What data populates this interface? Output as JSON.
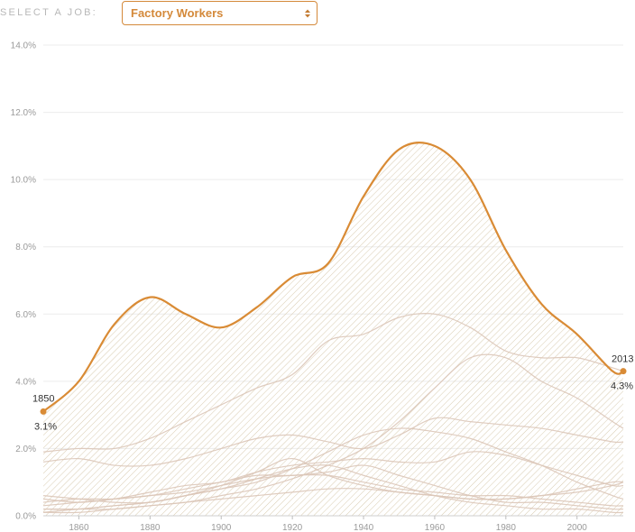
{
  "job_selector": {
    "label": "SELECT A JOB:",
    "selected": "Factory Workers"
  },
  "colors": {
    "accent": "#d98b35",
    "background_lines": "#dcc6b8",
    "hatch": "#d8cbb0",
    "grid": "#ececec"
  },
  "chart_data": {
    "type": "line",
    "y_ticks": [
      "0.0%",
      "2.0%",
      "4.0%",
      "6.0%",
      "8.0%",
      "10.0%",
      "12.0%",
      "14.0%"
    ],
    "x_ticks": [
      "1860",
      "1880",
      "1900",
      "1920",
      "1940",
      "1960",
      "1980",
      "2000"
    ],
    "xlim": [
      1850,
      2013
    ],
    "ylim": [
      0,
      14
    ],
    "grid": true,
    "highlight_series": {
      "name": "Factory Workers",
      "x": [
        1850,
        1860,
        1870,
        1880,
        1890,
        1900,
        1910,
        1920,
        1930,
        1940,
        1950,
        1960,
        1970,
        1980,
        1990,
        2000,
        2010,
        2013
      ],
      "y": [
        3.1,
        4.0,
        5.7,
        6.5,
        6.0,
        5.6,
        6.2,
        7.1,
        7.5,
        9.5,
        10.9,
        11.0,
        10.0,
        7.9,
        6.3,
        5.4,
        4.3,
        4.3
      ]
    },
    "start_label": {
      "year": "1850",
      "value": "3.1%"
    },
    "end_label": {
      "year": "2013",
      "value": "4.3%"
    },
    "background_series": [
      {
        "x": [
          1850,
          1860,
          1870,
          1880,
          1890,
          1900,
          1910,
          1920,
          1930,
          1940,
          1950,
          1960,
          1970,
          1980,
          1990,
          2000,
          2010,
          2013
        ],
        "y": [
          1.9,
          2.0,
          2.0,
          2.3,
          2.8,
          3.3,
          3.8,
          4.2,
          5.2,
          5.4,
          5.9,
          6.0,
          5.6,
          4.9,
          4.7,
          4.7,
          4.4,
          4.3
        ]
      },
      {
        "x": [
          1850,
          1860,
          1870,
          1880,
          1890,
          1900,
          1910,
          1920,
          1930,
          1940,
          1950,
          1960,
          1970,
          1980,
          1990,
          2000,
          2010,
          2013
        ],
        "y": [
          0.1,
          0.1,
          0.2,
          0.3,
          0.4,
          0.6,
          0.8,
          1.1,
          1.5,
          2.0,
          2.8,
          3.8,
          4.7,
          4.7,
          4.0,
          3.5,
          2.8,
          2.6
        ]
      },
      {
        "x": [
          1850,
          1860,
          1870,
          1880,
          1890,
          1900,
          1910,
          1920,
          1930,
          1940,
          1950,
          1960,
          1970,
          1980,
          1990,
          2000,
          2010,
          2013
        ],
        "y": [
          1.6,
          1.7,
          1.5,
          1.5,
          1.7,
          2.0,
          2.3,
          2.4,
          2.2,
          2.0,
          2.4,
          2.9,
          2.8,
          2.7,
          2.6,
          2.4,
          2.2,
          2.2
        ]
      },
      {
        "x": [
          1850,
          1860,
          1870,
          1880,
          1890,
          1900,
          1910,
          1920,
          1930,
          1940,
          1950,
          1960,
          1970,
          1980,
          1990,
          2000,
          2010,
          2013
        ],
        "y": [
          0.3,
          0.4,
          0.5,
          0.7,
          0.9,
          1.0,
          1.3,
          1.5,
          1.6,
          1.7,
          1.6,
          1.6,
          1.9,
          1.8,
          1.5,
          1.2,
          0.9,
          0.9
        ]
      },
      {
        "x": [
          1850,
          1860,
          1870,
          1880,
          1890,
          1900,
          1910,
          1920,
          1930,
          1940,
          1950,
          1960,
          1970,
          1980,
          1990,
          2000,
          2010,
          2013
        ],
        "y": [
          0.6,
          0.5,
          0.4,
          0.4,
          0.6,
          0.9,
          1.3,
          1.7,
          1.2,
          0.9,
          0.7,
          0.6,
          0.5,
          0.5,
          0.6,
          0.8,
          1.0,
          1.0
        ]
      },
      {
        "x": [
          1850,
          1860,
          1870,
          1880,
          1890,
          1900,
          1910,
          1920,
          1930,
          1940,
          1950,
          1960,
          1970,
          1980,
          1990,
          2000,
          2010,
          2013
        ],
        "y": [
          0.5,
          0.4,
          0.5,
          0.6,
          0.8,
          1.0,
          1.2,
          1.2,
          1.3,
          1.5,
          1.2,
          0.9,
          0.6,
          0.4,
          0.4,
          0.3,
          0.2,
          0.2
        ]
      },
      {
        "x": [
          1850,
          1860,
          1870,
          1880,
          1890,
          1900,
          1910,
          1920,
          1930,
          1940,
          1950,
          1960,
          1970,
          1980,
          1990,
          2000,
          2010,
          2013
        ],
        "y": [
          0.1,
          0.2,
          0.3,
          0.4,
          0.6,
          0.8,
          1.0,
          1.4,
          1.9,
          2.4,
          2.6,
          2.5,
          2.3,
          1.9,
          1.5,
          1.0,
          0.6,
          0.5
        ]
      },
      {
        "x": [
          1850,
          1860,
          1870,
          1880,
          1890,
          1900,
          1910,
          1920,
          1930,
          1940,
          1950,
          1960,
          1970,
          1980,
          1990,
          2000,
          2010,
          2013
        ],
        "y": [
          0.2,
          0.2,
          0.3,
          0.4,
          0.6,
          0.8,
          1.1,
          1.4,
          1.5,
          1.2,
          0.9,
          0.6,
          0.4,
          0.3,
          0.2,
          0.2,
          0.1,
          0.1
        ]
      },
      {
        "x": [
          1850,
          1860,
          1870,
          1880,
          1890,
          1900,
          1910,
          1920,
          1930,
          1940,
          1950,
          1960,
          1970,
          1980,
          1990,
          2000,
          2010,
          2013
        ],
        "y": [
          0.4,
          0.5,
          0.5,
          0.6,
          0.7,
          0.9,
          1.1,
          1.2,
          1.2,
          1.0,
          0.8,
          0.7,
          0.6,
          0.6,
          0.5,
          0.4,
          0.3,
          0.3
        ]
      },
      {
        "x": [
          1850,
          1860,
          1870,
          1880,
          1890,
          1900,
          1910,
          1920,
          1930,
          1940,
          1950,
          1960,
          1970,
          1980,
          1990,
          2000,
          2010,
          2013
        ],
        "y": [
          0.2,
          0.2,
          0.2,
          0.3,
          0.4,
          0.5,
          0.6,
          0.7,
          0.8,
          0.8,
          0.7,
          0.6,
          0.5,
          0.5,
          0.6,
          0.7,
          0.9,
          1.0
        ]
      }
    ]
  }
}
